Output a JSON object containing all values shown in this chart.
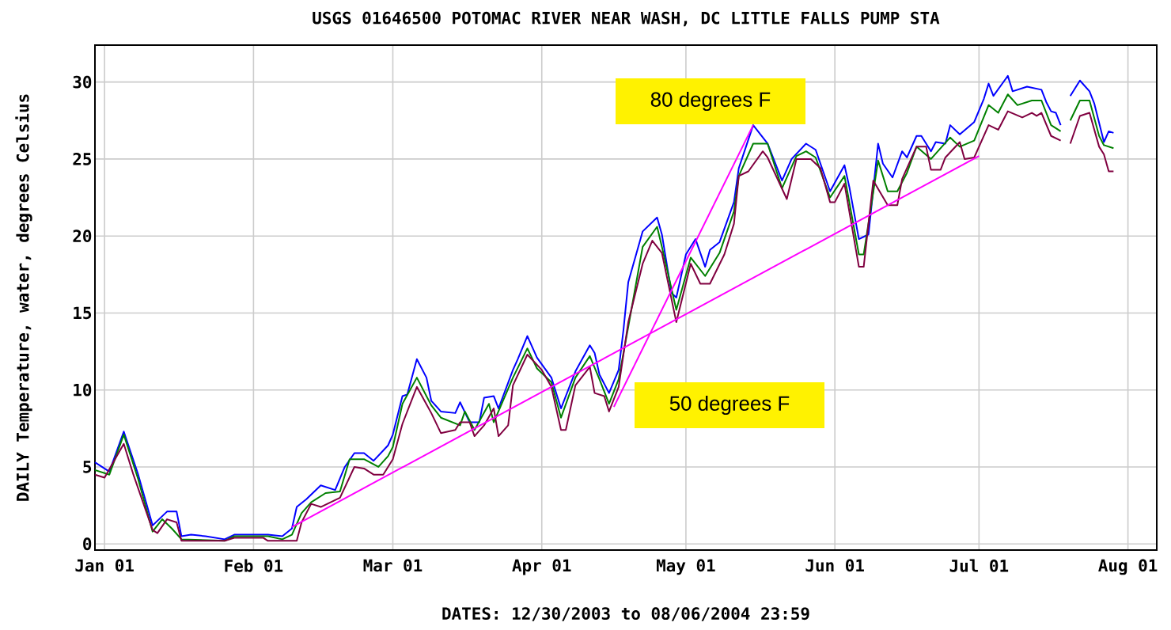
{
  "chart_data": {
    "type": "line",
    "title": "USGS 01646500 POTOMAC RIVER NEAR WASH, DC LITTLE FALLS PUMP STA",
    "xlabel": "DATES: 12/30/2003 to 08/06/2004 23:59",
    "ylabel": "DAILY Temperature, water, degrees Celsius",
    "xlim": [
      "2003-12-30",
      "2004-08-07"
    ],
    "ylim": [
      -0.4,
      32.4
    ],
    "xticks": [
      {
        "value": "2004-01-01",
        "label": "Jan 01"
      },
      {
        "value": "2004-02-01",
        "label": "Feb 01"
      },
      {
        "value": "2004-03-01",
        "label": "Mar 01"
      },
      {
        "value": "2004-04-01",
        "label": "Apr 01"
      },
      {
        "value": "2004-05-01",
        "label": "May 01"
      },
      {
        "value": "2004-06-01",
        "label": "Jun 01"
      },
      {
        "value": "2004-07-01",
        "label": "Jul 01"
      },
      {
        "value": "2004-08-01",
        "label": "Aug 01"
      }
    ],
    "yticks": [
      0,
      5,
      10,
      15,
      20,
      25,
      30
    ],
    "grid": true,
    "series": [
      {
        "color": "#0000ff",
        "x": [
          "2003-12-30",
          "2004-01-02",
          "2004-01-05",
          "2004-01-08",
          "2004-01-11",
          "2004-01-14",
          "2004-01-16",
          "2004-01-17",
          "2004-01-19",
          "2004-01-22",
          "2004-01-26",
          "2004-01-28",
          "2004-02-04",
          "2004-02-07",
          "2004-02-09",
          "2004-02-10",
          "2004-02-12",
          "2004-02-15",
          "2004-02-18",
          "2004-02-20",
          "2004-02-22",
          "2004-02-24",
          "2004-02-26",
          "2004-02-29",
          "2004-03-01",
          "2004-03-03",
          "2004-03-04",
          "2004-03-06",
          "2004-03-08",
          "2004-03-09",
          "2004-03-11",
          "2004-03-14",
          "2004-03-15",
          "2004-03-17",
          "2004-03-19",
          "2004-03-20",
          "2004-03-22",
          "2004-03-23",
          "2004-03-26",
          "2004-03-27",
          "2004-03-29",
          "2004-03-31",
          "2004-04-03",
          "2004-04-05",
          "2004-04-08",
          "2004-04-11",
          "2004-04-12",
          "2004-04-13",
          "2004-04-15",
          "2004-04-17",
          "2004-04-18",
          "2004-04-19",
          "2004-04-22",
          "2004-04-25",
          "2004-04-26",
          "2004-04-28",
          "2004-04-29",
          "2004-05-01",
          "2004-05-03",
          "2004-05-05",
          "2004-05-06",
          "2004-05-08",
          "2004-05-11",
          "2004-05-12",
          "2004-05-15",
          "2004-05-18",
          "2004-05-21",
          "2004-05-23",
          "2004-05-26",
          "2004-05-28",
          "2004-05-31",
          "2004-06-03",
          "2004-06-04",
          "2004-06-06",
          "2004-06-08",
          "2004-06-10",
          "2004-06-11",
          "2004-06-13",
          "2004-06-15",
          "2004-06-16",
          "2004-06-18",
          "2004-06-19",
          "2004-06-21",
          "2004-06-22",
          "2004-06-24",
          "2004-06-25",
          "2004-06-27",
          "2004-06-30",
          "2004-07-02",
          "2004-07-03",
          "2004-07-04",
          "2004-07-07",
          "2004-07-08",
          "2004-07-11",
          "2004-07-14",
          "2004-07-15",
          "2004-07-16",
          "2004-07-17",
          "2004-07-18",
          "2004-07-19",
          "2004-07-20",
          "2004-07-22",
          "2004-07-24",
          "2004-07-25",
          "2004-07-27",
          "2004-07-28",
          "2004-07-29"
        ],
        "values": [
          5.3,
          4.7,
          7.3,
          4.5,
          1.2,
          2.1,
          2.1,
          0.5,
          0.6,
          0.5,
          0.3,
          0.6,
          0.6,
          0.5,
          1.0,
          2.4,
          2.9,
          3.8,
          3.5,
          5.0,
          5.9,
          5.9,
          5.4,
          6.4,
          7.1,
          9.6,
          9.7,
          12.0,
          10.8,
          9.3,
          8.6,
          8.5,
          9.2,
          7.9,
          7.9,
          9.5,
          9.6,
          8.8,
          11.3,
          12.0,
          13.5,
          12.1,
          10.8,
          8.8,
          11.2,
          12.9,
          12.4,
          11.0,
          9.8,
          11.3,
          13.9,
          17.0,
          20.3,
          21.2,
          20.1,
          16.3,
          16.0,
          18.8,
          19.8,
          18.0,
          19.1,
          19.6,
          22.2,
          24.4,
          27.2,
          26.0,
          23.6,
          25.0,
          26.0,
          25.6,
          22.9,
          24.6,
          23.2,
          19.8,
          20.1,
          26.0,
          24.7,
          23.8,
          25.5,
          25.1,
          26.5,
          26.5,
          25.5,
          26.1,
          26.0,
          27.2,
          26.6,
          27.4,
          28.9,
          29.9,
          29.1,
          30.4,
          29.4,
          29.7,
          29.5,
          28.7,
          28.1,
          28.0,
          27.2,
          null,
          29.1,
          30.1,
          29.4,
          28.6,
          26.1,
          26.8,
          26.7
        ]
      },
      {
        "color": "#008000",
        "x": [
          "2003-12-30",
          "2004-01-02",
          "2004-01-05",
          "2004-01-08",
          "2004-01-11",
          "2004-01-13",
          "2004-01-15",
          "2004-01-17",
          "2004-01-26",
          "2004-01-28",
          "2004-02-04",
          "2004-02-07",
          "2004-02-09",
          "2004-02-11",
          "2004-02-13",
          "2004-02-16",
          "2004-02-19",
          "2004-02-21",
          "2004-02-24",
          "2004-02-27",
          "2004-02-29",
          "2004-03-01",
          "2004-03-03",
          "2004-03-06",
          "2004-03-09",
          "2004-03-11",
          "2004-03-15",
          "2004-03-16",
          "2004-03-18",
          "2004-03-21",
          "2004-03-22",
          "2004-03-26",
          "2004-03-29",
          "2004-03-31",
          "2004-04-03",
          "2004-04-05",
          "2004-04-08",
          "2004-04-11",
          "2004-04-13",
          "2004-04-15",
          "2004-04-17",
          "2004-04-19",
          "2004-04-22",
          "2004-04-25",
          "2004-04-26",
          "2004-04-29",
          "2004-05-02",
          "2004-05-05",
          "2004-05-08",
          "2004-05-11",
          "2004-05-12",
          "2004-05-15",
          "2004-05-18",
          "2004-05-21",
          "2004-05-24",
          "2004-05-26",
          "2004-05-28",
          "2004-05-31",
          "2004-06-03",
          "2004-06-06",
          "2004-06-07",
          "2004-06-10",
          "2004-06-12",
          "2004-06-14",
          "2004-06-16",
          "2004-06-18",
          "2004-06-21",
          "2004-06-25",
          "2004-06-27",
          "2004-06-30",
          "2004-07-03",
          "2004-07-05",
          "2004-07-07",
          "2004-07-09",
          "2004-07-12",
          "2004-07-14",
          "2004-07-16",
          "2004-07-18",
          "2004-07-19",
          "2004-07-20",
          "2004-07-22",
          "2004-07-24",
          "2004-07-26",
          "2004-07-27",
          "2004-07-29"
        ],
        "values": [
          4.8,
          4.5,
          7.1,
          4.2,
          0.8,
          1.6,
          1.0,
          0.3,
          0.2,
          0.5,
          0.5,
          0.3,
          0.6,
          2.0,
          2.7,
          3.3,
          3.4,
          5.5,
          5.5,
          5.0,
          5.7,
          6.3,
          9.1,
          10.8,
          9.0,
          8.2,
          7.7,
          8.6,
          7.4,
          9.1,
          7.9,
          10.8,
          12.7,
          11.4,
          10.5,
          8.2,
          10.8,
          12.2,
          10.7,
          9.1,
          10.7,
          14.1,
          19.3,
          20.6,
          19.3,
          15.2,
          18.6,
          17.4,
          18.9,
          21.6,
          23.9,
          26.0,
          26.0,
          23.1,
          25.2,
          25.5,
          25.1,
          22.5,
          23.9,
          18.8,
          18.8,
          24.9,
          22.9,
          22.9,
          24.1,
          25.8,
          25.0,
          26.4,
          25.8,
          26.2,
          28.5,
          28.0,
          29.2,
          28.5,
          28.8,
          28.8,
          27.2,
          26.8,
          null,
          27.5,
          28.8,
          28.8,
          26.5,
          25.9,
          25.7
        ]
      },
      {
        "color": "#800040",
        "x": [
          "2003-12-30",
          "2004-01-01",
          "2004-01-05",
          "2004-01-07",
          "2004-01-11",
          "2004-01-12",
          "2004-01-14",
          "2004-01-16",
          "2004-01-17",
          "2004-01-26",
          "2004-01-28",
          "2004-02-03",
          "2004-02-04",
          "2004-02-10",
          "2004-02-11",
          "2004-02-13",
          "2004-02-15",
          "2004-02-19",
          "2004-02-22",
          "2004-02-24",
          "2004-02-26",
          "2004-02-28",
          "2004-03-01",
          "2004-03-03",
          "2004-03-06",
          "2004-03-09",
          "2004-03-11",
          "2004-03-14",
          "2004-03-15",
          "2004-03-17",
          "2004-03-18",
          "2004-03-20",
          "2004-03-22",
          "2004-03-23",
          "2004-03-25",
          "2004-03-26",
          "2004-03-29",
          "2004-04-01",
          "2004-04-03",
          "2004-04-05",
          "2004-04-06",
          "2004-04-08",
          "2004-04-11",
          "2004-04-12",
          "2004-04-14",
          "2004-04-15",
          "2004-04-17",
          "2004-04-19",
          "2004-04-22",
          "2004-04-24",
          "2004-04-26",
          "2004-04-29",
          "2004-05-02",
          "2004-05-04",
          "2004-05-06",
          "2004-05-09",
          "2004-05-11",
          "2004-05-12",
          "2004-05-14",
          "2004-05-17",
          "2004-05-18",
          "2004-05-22",
          "2004-05-24",
          "2004-05-27",
          "2004-05-29",
          "2004-05-31",
          "2004-06-01",
          "2004-06-03",
          "2004-06-06",
          "2004-06-07",
          "2004-06-09",
          "2004-06-12",
          "2004-06-14",
          "2004-06-15",
          "2004-06-18",
          "2004-06-20",
          "2004-06-21",
          "2004-06-23",
          "2004-06-24",
          "2004-06-27",
          "2004-06-28",
          "2004-06-30",
          "2004-07-03",
          "2004-07-05",
          "2004-07-07",
          "2004-07-10",
          "2004-07-12",
          "2004-07-13",
          "2004-07-14",
          "2004-07-16",
          "2004-07-18",
          "2004-07-19",
          "2004-07-20",
          "2004-07-22",
          "2004-07-24",
          "2004-07-26",
          "2004-07-27",
          "2004-07-28",
          "2004-07-29"
        ],
        "values": [
          4.5,
          4.3,
          6.5,
          4.5,
          0.9,
          0.7,
          1.6,
          1.4,
          0.2,
          0.2,
          0.4,
          0.4,
          0.2,
          0.2,
          1.4,
          2.6,
          2.4,
          3.0,
          5.0,
          4.9,
          4.5,
          4.5,
          5.5,
          7.8,
          10.2,
          8.5,
          7.2,
          7.4,
          7.9,
          7.9,
          7.0,
          7.7,
          8.8,
          7.0,
          7.7,
          10.3,
          12.3,
          11.3,
          10.2,
          7.4,
          7.4,
          10.3,
          11.5,
          9.8,
          9.6,
          8.6,
          10.2,
          14.4,
          18.2,
          19.7,
          18.9,
          14.4,
          18.2,
          16.9,
          16.9,
          18.8,
          20.8,
          23.9,
          24.2,
          25.5,
          25.1,
          22.4,
          25.0,
          25.0,
          24.4,
          22.2,
          22.2,
          23.4,
          18.0,
          18.0,
          23.6,
          22.0,
          22.0,
          23.7,
          25.8,
          25.8,
          24.3,
          24.3,
          25.1,
          26.1,
          25.0,
          25.1,
          27.2,
          26.9,
          28.1,
          27.7,
          28.0,
          27.8,
          28.0,
          26.5,
          26.2,
          null,
          26.0,
          27.8,
          28.0,
          25.8,
          25.3,
          24.2,
          24.2
        ]
      },
      {
        "color": "#ff00ff",
        "x": [
          "2004-02-09",
          "2004-07-01"
        ],
        "values": [
          1.1,
          25.2
        ]
      },
      {
        "color": "#ff00ff",
        "x": [
          "2004-04-16",
          "2004-05-15"
        ],
        "values": [
          8.9,
          27.2
        ]
      }
    ],
    "annotations": [
      "80 degrees F",
      "50 degrees F"
    ]
  }
}
